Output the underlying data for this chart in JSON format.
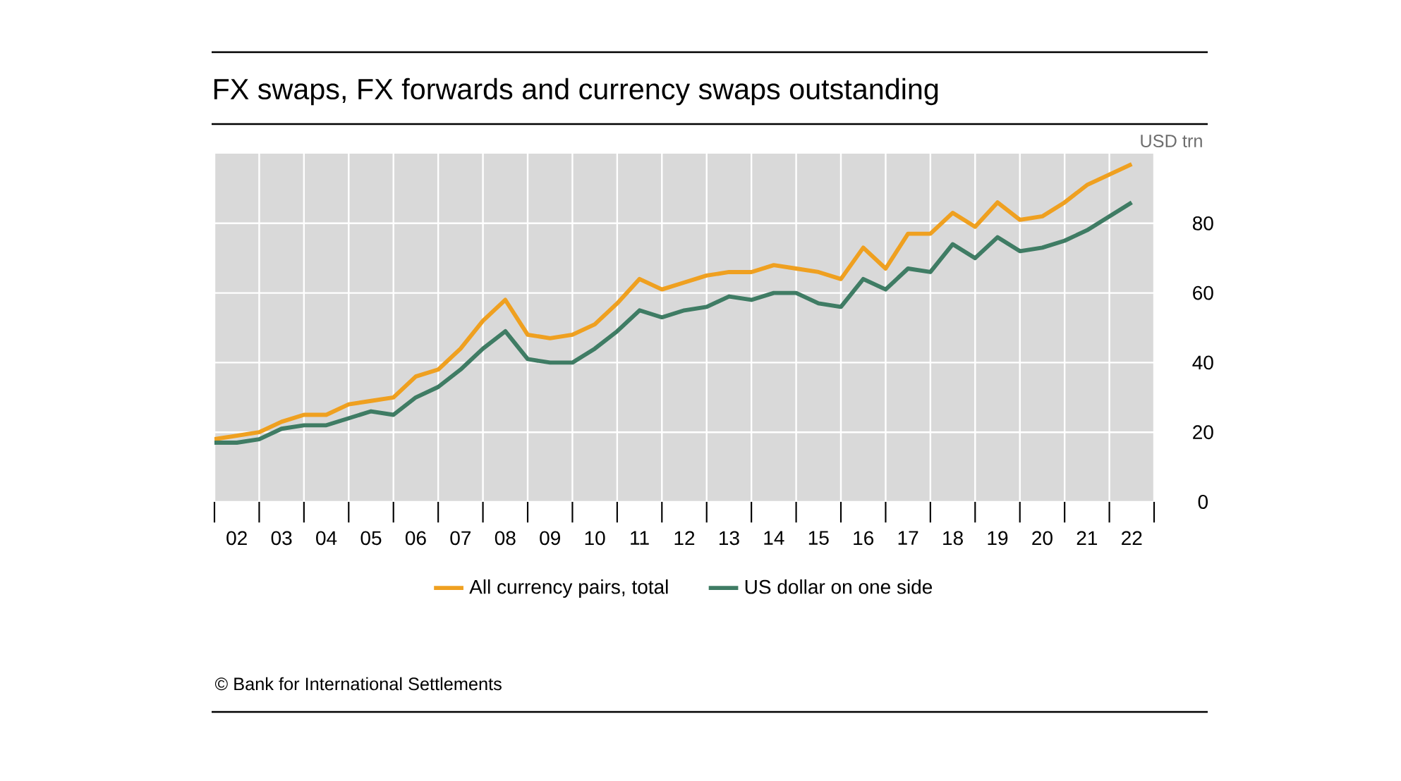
{
  "chart_data": {
    "type": "line",
    "title": "FX swaps, FX forwards and currency swaps outstanding",
    "ylabel": "USD trn",
    "x": [
      "2002-01",
      "2002-07",
      "2003-01",
      "2003-07",
      "2004-01",
      "2004-07",
      "2005-01",
      "2005-07",
      "2006-01",
      "2006-07",
      "2007-01",
      "2007-07",
      "2008-01",
      "2008-07",
      "2009-01",
      "2009-07",
      "2010-01",
      "2010-07",
      "2011-01",
      "2011-07",
      "2012-01",
      "2012-07",
      "2013-01",
      "2013-07",
      "2014-01",
      "2014-07",
      "2015-01",
      "2015-07",
      "2016-01",
      "2016-07",
      "2017-01",
      "2017-07",
      "2018-01",
      "2018-07",
      "2019-01",
      "2019-07",
      "2020-01",
      "2020-07",
      "2021-01",
      "2021-07",
      "2022-01",
      "2022-07"
    ],
    "series": [
      {
        "name": "All currency pairs, total",
        "color": "#efa020",
        "values": [
          18,
          19,
          20,
          23,
          25,
          25,
          28,
          29,
          30,
          36,
          38,
          44,
          52,
          58,
          48,
          47,
          48,
          51,
          57,
          64,
          61,
          63,
          65,
          66,
          66,
          68,
          67,
          66,
          64,
          73,
          67,
          77,
          77,
          83,
          79,
          86,
          81,
          82,
          86,
          91,
          94,
          97
        ]
      },
      {
        "name": "US dollar on one side",
        "color": "#3f7c64",
        "values": [
          17,
          17,
          18,
          21,
          22,
          22,
          24,
          26,
          25,
          30,
          33,
          38,
          44,
          49,
          41,
          40,
          40,
          44,
          49,
          55,
          53,
          55,
          56,
          59,
          58,
          60,
          60,
          57,
          56,
          64,
          61,
          67,
          66,
          74,
          70,
          76,
          72,
          73,
          75,
          78,
          82,
          86
        ]
      }
    ],
    "xlim": [
      "2002-01",
      "2023-01"
    ],
    "xticks": [
      {
        "value": "2002-01",
        "label": null
      },
      {
        "value": "2003-01",
        "label": null
      },
      {
        "value": "2004-01",
        "label": null
      },
      {
        "value": "2005-01",
        "label": null
      },
      {
        "value": "2006-01",
        "label": null
      },
      {
        "value": "2007-01",
        "label": null
      },
      {
        "value": "2008-01",
        "label": null
      },
      {
        "value": "2009-01",
        "label": null
      },
      {
        "value": "2010-01",
        "label": null
      },
      {
        "value": "2011-01",
        "label": null
      },
      {
        "value": "2012-01",
        "label": null
      },
      {
        "value": "2013-01",
        "label": null
      },
      {
        "value": "2014-01",
        "label": null
      },
      {
        "value": "2015-01",
        "label": null
      },
      {
        "value": "2016-01",
        "label": null
      },
      {
        "value": "2017-01",
        "label": null
      },
      {
        "value": "2018-01",
        "label": null
      },
      {
        "value": "2019-01",
        "label": null
      },
      {
        "value": "2020-01",
        "label": null
      },
      {
        "value": "2021-01",
        "label": null
      },
      {
        "value": "2022-01",
        "label": null
      },
      {
        "value": "2023-01",
        "label": null
      },
      {
        "value": "2002-07",
        "label": "02"
      },
      {
        "value": "2003-07",
        "label": "03"
      },
      {
        "value": "2004-07",
        "label": "04"
      },
      {
        "value": "2005-07",
        "label": "05"
      },
      {
        "value": "2006-07",
        "label": "06"
      },
      {
        "value": "2007-07",
        "label": "07"
      },
      {
        "value": "2008-07",
        "label": "08"
      },
      {
        "value": "2009-07",
        "label": "09"
      },
      {
        "value": "2010-07",
        "label": "10"
      },
      {
        "value": "2011-07",
        "label": "11"
      },
      {
        "value": "2012-07",
        "label": "12"
      },
      {
        "value": "2013-07",
        "label": "13"
      },
      {
        "value": "2014-07",
        "label": "14"
      },
      {
        "value": "2015-07",
        "label": "15"
      },
      {
        "value": "2016-07",
        "label": "16"
      },
      {
        "value": "2017-07",
        "label": "17"
      },
      {
        "value": "2018-07",
        "label": "18"
      },
      {
        "value": "2019-07",
        "label": "19"
      },
      {
        "value": "2020-07",
        "label": "20"
      },
      {
        "value": "2021-07",
        "label": "21"
      },
      {
        "value": "2022-07",
        "label": "22"
      }
    ],
    "ylim": [
      0,
      100
    ],
    "yticks": [
      0,
      20,
      40,
      60,
      80
    ],
    "grid": true,
    "legend": "bottom",
    "marker": "none",
    "line_style": "solid",
    "annotations": [
      "© Bank for International Settlements"
    ]
  }
}
